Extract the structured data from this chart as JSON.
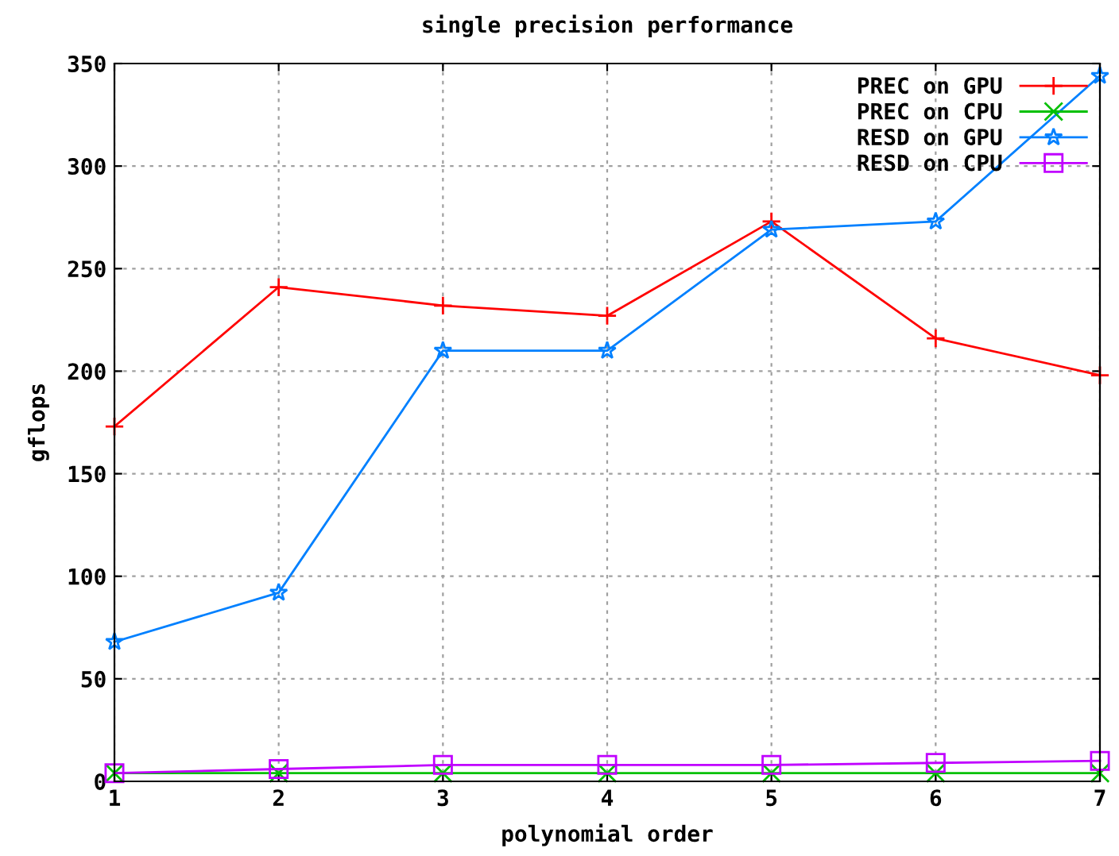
{
  "chart_data": {
    "type": "line",
    "title": "single precision performance",
    "xlabel": "polynomial order",
    "ylabel": "gflops",
    "x": [
      1,
      2,
      3,
      4,
      5,
      6,
      7
    ],
    "series": [
      {
        "name": "PREC on GPU",
        "color": "#ff0000",
        "marker": "plus",
        "values": [
          173,
          241,
          232,
          227,
          273,
          216,
          198
        ]
      },
      {
        "name": "PREC on CPU",
        "color": "#00c000",
        "marker": "x",
        "values": [
          4,
          4,
          4,
          4,
          4,
          4,
          4
        ]
      },
      {
        "name": "RESD on GPU",
        "color": "#0080ff",
        "marker": "star",
        "values": [
          68,
          92,
          210,
          210,
          269,
          273,
          344
        ]
      },
      {
        "name": "RESD on CPU",
        "color": "#c000ff",
        "marker": "square",
        "values": [
          4,
          6,
          8,
          8,
          8,
          9,
          10
        ]
      }
    ],
    "xlim": [
      1,
      7
    ],
    "xticks": [
      1,
      2,
      3,
      4,
      5,
      6,
      7
    ],
    "ylim": [
      0,
      350
    ],
    "yticks": [
      0,
      50,
      100,
      150,
      200,
      250,
      300,
      350
    ],
    "grid": true,
    "legend": "top right",
    "line_style": "solid"
  }
}
